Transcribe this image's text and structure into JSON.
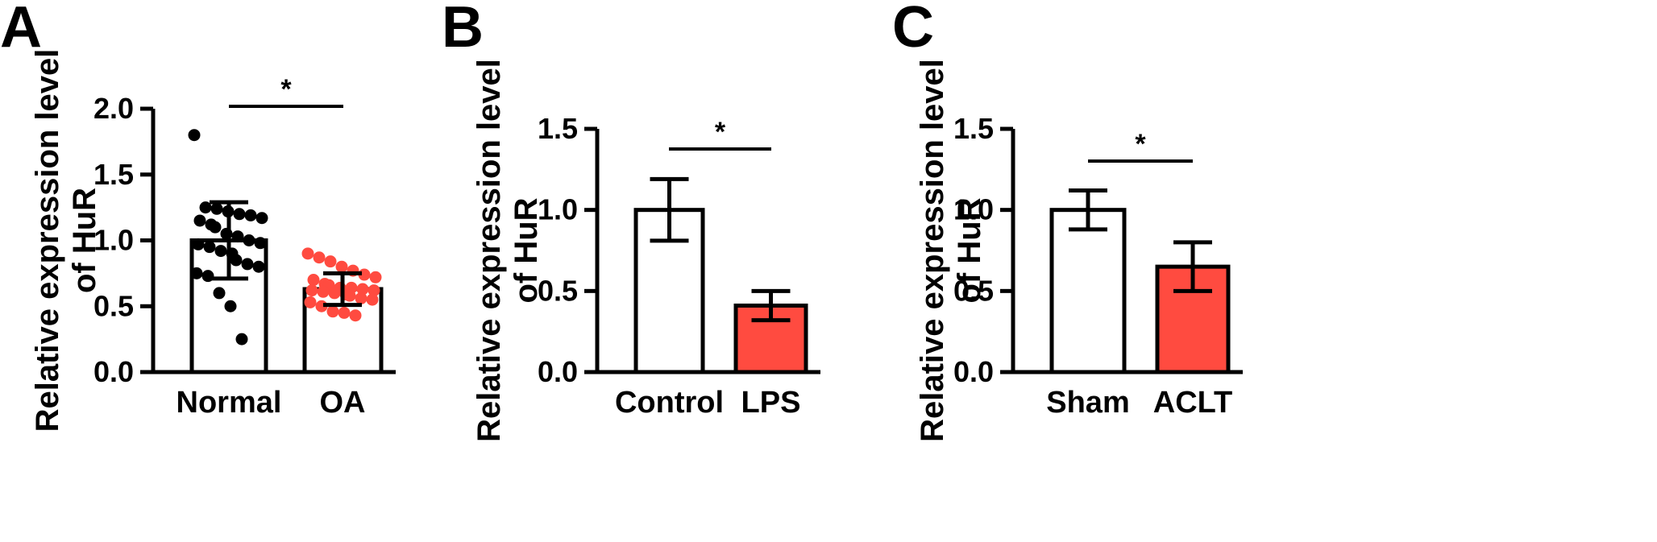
{
  "colors": {
    "ink": "#000000",
    "bar_white": "#ffffff",
    "bar_red": "#ff4b40",
    "point_black": "#000000",
    "point_red": "#ff4b40"
  },
  "chart_data": [
    {
      "panel": "A",
      "type": "bar",
      "categories": [
        "Normal",
        "OA"
      ],
      "ylabel_lines": [
        "Relative expression level",
        "of HuR"
      ],
      "ylim": [
        0,
        2.0
      ],
      "yticks": [
        "0.0",
        "0.5",
        "1.0",
        "1.5",
        "2.0"
      ],
      "ytick_values": [
        0,
        0.5,
        1.0,
        1.5,
        2.0
      ],
      "values": [
        1.0,
        0.63
      ],
      "error": [
        [
          0.71,
          1.29
        ],
        [
          0.51,
          0.75
        ]
      ],
      "bar_colors": [
        "#ffffff",
        "#ffffff"
      ],
      "points": [
        [
          1.8,
          1.25,
          1.24,
          1.22,
          1.2,
          1.19,
          1.17,
          1.15,
          1.12,
          1.1,
          1.05,
          1.03,
          1.0,
          0.98,
          0.97,
          0.95,
          0.92,
          0.9,
          0.85,
          0.82,
          0.8,
          0.75,
          0.73,
          0.6,
          0.5,
          0.25
        ],
        [
          0.9,
          0.87,
          0.84,
          0.8,
          0.77,
          0.74,
          0.72,
          0.7,
          0.67,
          0.66,
          0.64,
          0.64,
          0.63,
          0.62,
          0.62,
          0.61,
          0.6,
          0.59,
          0.58,
          0.56,
          0.55,
          0.53,
          0.5,
          0.46,
          0.45,
          0.43
        ]
      ],
      "point_colors": [
        "#000000",
        "#ff4b40"
      ],
      "significance": "*"
    },
    {
      "panel": "B",
      "type": "bar",
      "categories": [
        "Control",
        "LPS"
      ],
      "ylabel_lines": [
        "Relative expression level",
        "of HuR"
      ],
      "ylim": [
        0,
        1.5
      ],
      "yticks": [
        "0.0",
        "0.5",
        "1.0",
        "1.5"
      ],
      "ytick_values": [
        0,
        0.5,
        1.0,
        1.5
      ],
      "values": [
        1.0,
        0.41
      ],
      "error": [
        [
          0.81,
          1.19
        ],
        [
          0.32,
          0.5
        ]
      ],
      "bar_colors": [
        "#ffffff",
        "#ff4b40"
      ],
      "significance": "*"
    },
    {
      "panel": "C",
      "type": "bar",
      "categories": [
        "Sham",
        "ACLT"
      ],
      "ylabel_lines": [
        "Relative expression level",
        "of HuR"
      ],
      "ylim": [
        0,
        1.5
      ],
      "yticks": [
        "0.0",
        "0.5",
        "1.0",
        "1.5"
      ],
      "ytick_values": [
        0,
        0.5,
        1.0,
        1.5
      ],
      "values": [
        1.0,
        0.65
      ],
      "error": [
        [
          0.88,
          1.12
        ],
        [
          0.5,
          0.8
        ]
      ],
      "bar_colors": [
        "#ffffff",
        "#ff4b40"
      ],
      "significance": "*"
    }
  ]
}
